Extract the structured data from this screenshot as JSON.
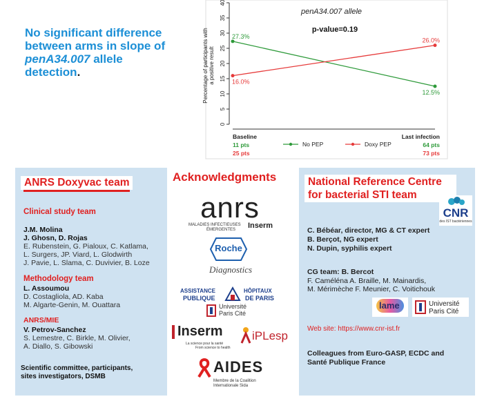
{
  "headline": {
    "line1": "No significant difference",
    "line2": "between arms in slope of",
    "italic": "penA34.007",
    "allele": " allele",
    "line4": "detection",
    "period": "."
  },
  "chart_data": {
    "type": "line",
    "title": "penA34.007 allele",
    "pvalue": "p-value=0.19",
    "ylabel_line1": "Percentage of participants with",
    "ylabel_line2": "a positive result",
    "yticks": [
      "0",
      "5",
      "10",
      "15",
      "20",
      "25",
      "30",
      "35",
      "40"
    ],
    "ylim": [
      0,
      40
    ],
    "categories": [
      "Baseline",
      "Last infection"
    ],
    "series": [
      {
        "name": "No PEP",
        "values": [
          27.3,
          12.5
        ],
        "labels": [
          "27.3%",
          "12.5%"
        ],
        "color": "#2e9a3a",
        "counts": [
          "11 pts",
          "64 pts"
        ]
      },
      {
        "name": "Doxy PEP",
        "values": [
          16.0,
          26.0
        ],
        "labels": [
          "16.0%",
          "26.0%"
        ],
        "color": "#e63a3a",
        "counts": [
          "25 pts",
          "73 pts"
        ]
      }
    ]
  },
  "left": {
    "title": "ANRS Doxyvac team",
    "clinical_title": "Clinical study team",
    "c1": "J.M. Molina",
    "c2": "J. Ghosn, D. Rojas",
    "c3": "E. Rubenstein, G. Pialoux, C. Katlama,",
    "c4": "L. Surgers, JP. Viard, L. Glodwirth",
    "c5": "J. Pavie, L. Slama, C. Duvivier, B. Loze",
    "method_title": "Methodology team",
    "m1": "L. Assoumou",
    "m2": "D. Costagliola, AD. Kaba",
    "m3": "M. Algarte-Genin, M. Ouattara",
    "anrs_title": "ANRS/MIE",
    "a1": "V. Petrov-Sanchez",
    "a2": "S. Lemestre, C. Birkle, M. Olivier,",
    "a3": "A. Diallo, S. Gibowski",
    "f1": "Scientific committee, participants,",
    "f2": "sites investigators, DSMB"
  },
  "middle": {
    "title": "Acknowledgments",
    "anrs": "anrs",
    "anrs_sub1": "MALADIES INFECTIEUSES",
    "anrs_sub2": "ÉMERGENTES",
    "inserm_small": "Inserm",
    "roche": "Roche",
    "diagnostics": "Diagnostics",
    "ap1": "ASSISTANCE",
    "ap2": "PUBLIQUE",
    "ap3": "HÔPITAUX",
    "ap4": "DE PARIS",
    "upc1": "Université",
    "upc2": "Paris Cité",
    "inserm": "Inserm",
    "inserm_sub1": "La science pour la santé",
    "inserm_sub2": "From science to health",
    "iplesp": "iPLesp",
    "aides": "AIDES",
    "aides_sub1": "Membre de la Coalition",
    "aides_sub2": "Internationale Sida"
  },
  "right": {
    "title_l1": "National Reference Centre",
    "title_l2": "for bacterial STI team",
    "cnr": "CNR",
    "cnr_sub": "des IST bactériennes",
    "r1": "C. Bébéar, director, MG & CT expert",
    "r2": "B. Berçot, NG expert",
    "r3": "N. Dupin, syphilis expert",
    "cg1": "CG team: B. Bercot",
    "cg2": "F. Caméléna A. Braille, M. Mainardis,",
    "cg3": "M. Mérimèche F. Meunier, C. Voitichouk",
    "lame": "lame",
    "upc1": "Université",
    "upc2": "Paris Cité",
    "website": "Web site: https://www.cnr-ist.fr",
    "col1": "Colleagues from Euro-GASP, ECDC and",
    "col2": "Santé Publique France"
  }
}
